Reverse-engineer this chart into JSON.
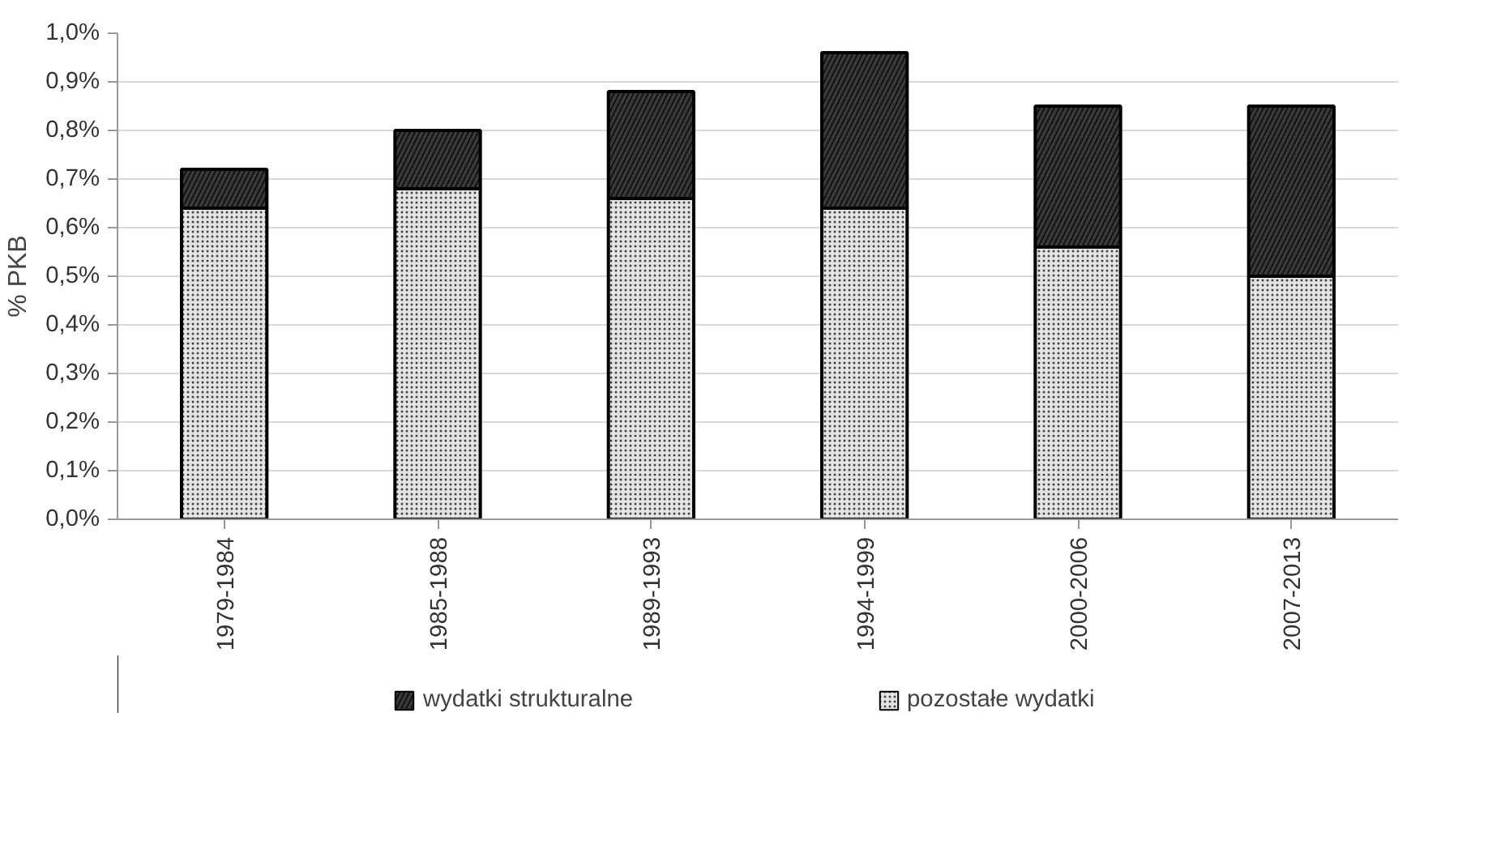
{
  "chart_data": {
    "type": "bar",
    "stacked": true,
    "ylabel": "% PKB",
    "categories": [
      "1979-1984",
      "1985-1988",
      "1989-1993",
      "1994-1999",
      "2000-2006",
      "2007-2013"
    ],
    "series": [
      {
        "name": "pozostałe wydatki",
        "color": "#e4e4e4",
        "values": [
          0.64,
          0.68,
          0.66,
          0.64,
          0.56,
          0.5
        ]
      },
      {
        "name": "wydatki strukturalne",
        "color": "#3a3a3a",
        "values": [
          0.08,
          0.12,
          0.22,
          0.32,
          0.29,
          0.35
        ]
      }
    ],
    "ylim": [
      0,
      1.0
    ],
    "yticks": [
      {
        "value": 0,
        "label": "0,0%"
      },
      {
        "value": 0.1,
        "label": "0,1%"
      },
      {
        "value": 0.2,
        "label": "0,2%"
      },
      {
        "value": 0.3,
        "label": "0,3%"
      },
      {
        "value": 0.4,
        "label": "0,4%"
      },
      {
        "value": 0.5,
        "label": "0,5%"
      },
      {
        "value": 0.6,
        "label": "0,6%"
      },
      {
        "value": 0.7,
        "label": "0,7%"
      },
      {
        "value": 0.8,
        "label": "0,8%"
      },
      {
        "value": 0.9,
        "label": "0,9%"
      },
      {
        "value": 1.0,
        "label": "1,0%"
      }
    ],
    "grid": "y",
    "legend": "bottom"
  }
}
